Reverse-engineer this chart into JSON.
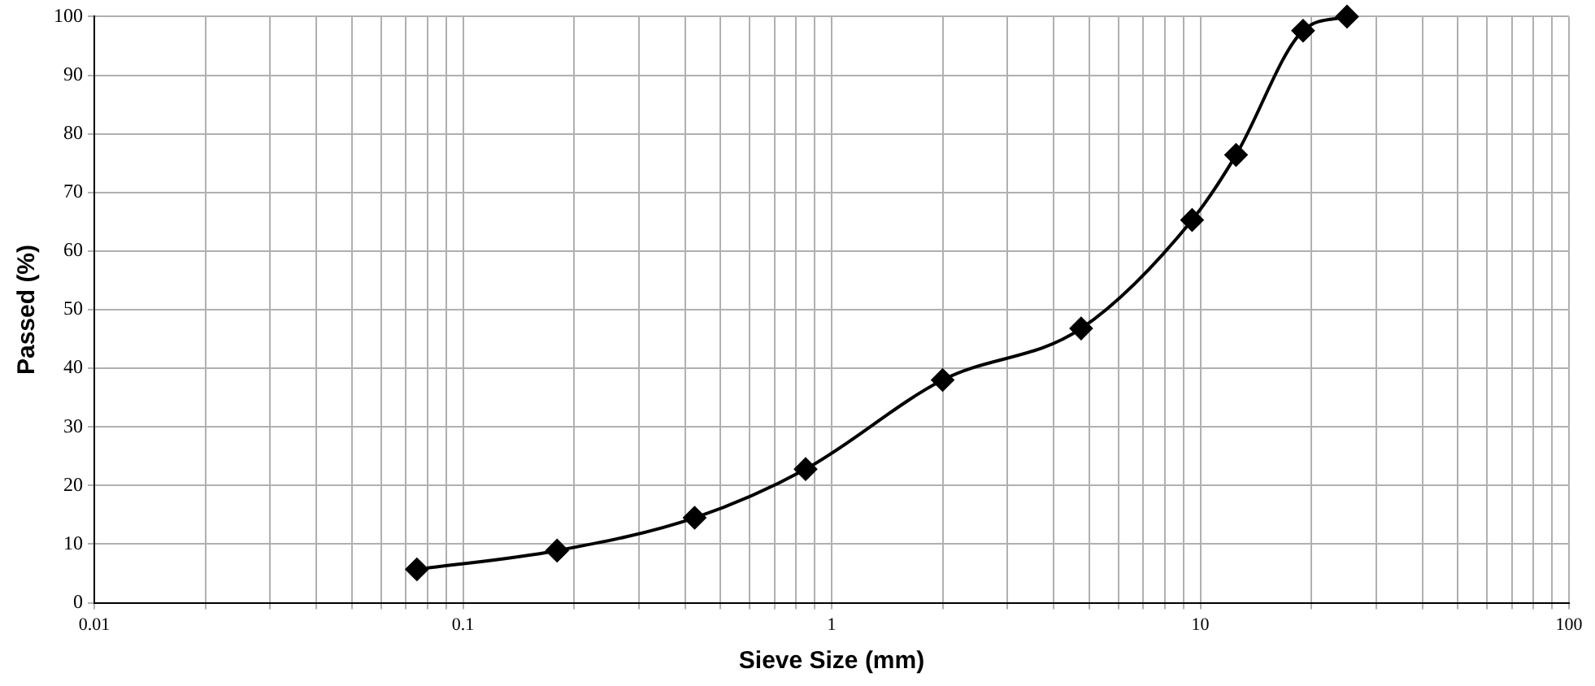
{
  "chart_data": {
    "type": "line",
    "xlabel": "Sieve Size (mm)",
    "ylabel": "Passed (%)",
    "x": [
      0.075,
      0.18,
      0.425,
      0.85,
      2,
      4.75,
      9.5,
      12.5,
      19,
      25
    ],
    "series": [
      {
        "color": "#000000",
        "values": [
          5.7,
          8.9,
          14.5,
          22.8,
          38,
          46.8,
          65.3,
          76.4,
          97.6,
          100
        ]
      }
    ],
    "log": "x",
    "xlim": [
      0.01,
      100
    ],
    "xticks": [
      0.01,
      {
        "value": 0.02,
        "label": null
      },
      {
        "value": 0.03,
        "label": null
      },
      {
        "value": 0.04,
        "label": null
      },
      {
        "value": 0.05,
        "label": null
      },
      {
        "value": 0.06,
        "label": null
      },
      {
        "value": 0.07,
        "label": null
      },
      {
        "value": 0.08,
        "label": null
      },
      {
        "value": 0.09,
        "label": null
      },
      0.1,
      {
        "value": 0.2,
        "label": null
      },
      {
        "value": 0.3,
        "label": null
      },
      {
        "value": 0.4,
        "label": null
      },
      {
        "value": 0.5,
        "label": null
      },
      {
        "value": 0.6,
        "label": null
      },
      {
        "value": 0.7,
        "label": null
      },
      {
        "value": 0.8,
        "label": null
      },
      {
        "value": 0.9,
        "label": null
      },
      1,
      {
        "value": 2,
        "label": null
      },
      {
        "value": 3,
        "label": null
      },
      {
        "value": 4,
        "label": null
      },
      {
        "value": 5,
        "label": null
      },
      {
        "value": 6,
        "label": null
      },
      {
        "value": 7,
        "label": null
      },
      {
        "value": 8,
        "label": null
      },
      {
        "value": 9,
        "label": null
      },
      10,
      {
        "value": 20,
        "label": null
      },
      {
        "value": 30,
        "label": null
      },
      {
        "value": 40,
        "label": null
      },
      {
        "value": 50,
        "label": null
      },
      {
        "value": 60,
        "label": null
      },
      {
        "value": 70,
        "label": null
      },
      {
        "value": 80,
        "label": null
      },
      {
        "value": 90,
        "label": null
      },
      100
    ],
    "ylim": [
      0,
      100
    ],
    "yticks": [
      0,
      10,
      20,
      30,
      40,
      50,
      60,
      70,
      80,
      90,
      100
    ],
    "grid": true,
    "legend": false,
    "marker": "diamond",
    "line_style": "solid"
  }
}
